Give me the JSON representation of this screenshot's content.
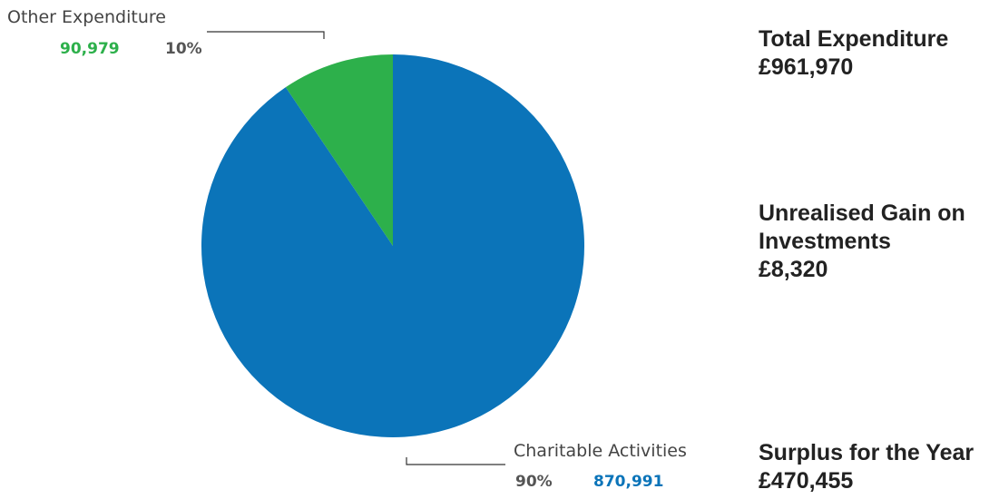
{
  "chart_data": {
    "type": "pie",
    "slices": [
      {
        "name": "Charitable Activities",
        "value": 870991,
        "value_label": "870,991",
        "percent_label": "90%",
        "color": "#0B74B9"
      },
      {
        "name": "Other Expenditure",
        "value": 90979,
        "value_label": "90,979",
        "percent_label": "10%",
        "color": "#2DB04B"
      }
    ],
    "legend": "none"
  },
  "summary": {
    "total": {
      "label": "Total Expenditure",
      "value": "£961,970"
    },
    "gain": {
      "label_line1": "Unrealised Gain on",
      "label_line2": "Investments",
      "value": "£8,320"
    },
    "surplus": {
      "label": "Surplus for the Year",
      "value": "£470,455"
    }
  },
  "colors": {
    "percent_text": "#555555",
    "leader_line": "#333333"
  }
}
